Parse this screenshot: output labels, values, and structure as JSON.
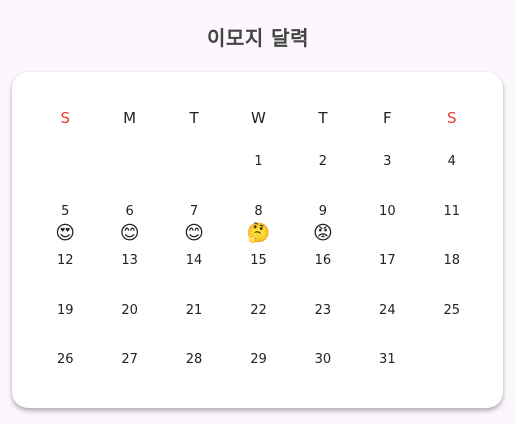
{
  "title": "이모지 달력",
  "weekdays": [
    "S",
    "M",
    "T",
    "W",
    "T",
    "F",
    "S"
  ],
  "colors": {
    "weekend": "#e33c2c",
    "text": "#222222",
    "title": "#444444"
  },
  "weeks": [
    [
      {
        "day": "",
        "emoji": ""
      },
      {
        "day": "",
        "emoji": ""
      },
      {
        "day": "",
        "emoji": ""
      },
      {
        "day": "1",
        "emoji": ""
      },
      {
        "day": "2",
        "emoji": ""
      },
      {
        "day": "3",
        "emoji": ""
      },
      {
        "day": "4",
        "emoji": ""
      }
    ],
    [
      {
        "day": "5",
        "emoji": "😍"
      },
      {
        "day": "6",
        "emoji": "😊"
      },
      {
        "day": "7",
        "emoji": "😊"
      },
      {
        "day": "8",
        "emoji": "🤔"
      },
      {
        "day": "9",
        "emoji": "😡"
      },
      {
        "day": "10",
        "emoji": ""
      },
      {
        "day": "11",
        "emoji": ""
      }
    ],
    [
      {
        "day": "12",
        "emoji": ""
      },
      {
        "day": "13",
        "emoji": ""
      },
      {
        "day": "14",
        "emoji": ""
      },
      {
        "day": "15",
        "emoji": ""
      },
      {
        "day": "16",
        "emoji": ""
      },
      {
        "day": "17",
        "emoji": ""
      },
      {
        "day": "18",
        "emoji": ""
      }
    ],
    [
      {
        "day": "19",
        "emoji": ""
      },
      {
        "day": "20",
        "emoji": ""
      },
      {
        "day": "21",
        "emoji": ""
      },
      {
        "day": "22",
        "emoji": ""
      },
      {
        "day": "23",
        "emoji": ""
      },
      {
        "day": "24",
        "emoji": ""
      },
      {
        "day": "25",
        "emoji": ""
      }
    ],
    [
      {
        "day": "26",
        "emoji": ""
      },
      {
        "day": "27",
        "emoji": ""
      },
      {
        "day": "28",
        "emoji": ""
      },
      {
        "day": "29",
        "emoji": ""
      },
      {
        "day": "30",
        "emoji": ""
      },
      {
        "day": "31",
        "emoji": ""
      },
      {
        "day": "",
        "emoji": ""
      }
    ]
  ]
}
